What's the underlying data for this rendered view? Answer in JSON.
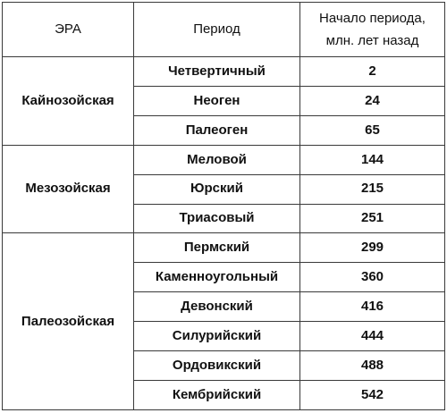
{
  "table": {
    "headers": {
      "era": "ЭРА",
      "period": "Период",
      "start_line1": "Начало периода,",
      "start_line2": "млн. лет назад"
    },
    "eras": [
      {
        "name": "Кайнозойская",
        "periods": [
          {
            "name": "Четвертичный",
            "start": "2"
          },
          {
            "name": "Неоген",
            "start": "24"
          },
          {
            "name": "Палеоген",
            "start": "65"
          }
        ]
      },
      {
        "name": "Мезозойская",
        "periods": [
          {
            "name": "Меловой",
            "start": "144"
          },
          {
            "name": "Юрский",
            "start": "215"
          },
          {
            "name": "Триасовый",
            "start": "251"
          }
        ]
      },
      {
        "name": "Палеозойская",
        "periods": [
          {
            "name": "Пермский",
            "start": "299"
          },
          {
            "name": "Каменноугольный",
            "start": "360"
          },
          {
            "name": "Девонский",
            "start": "416"
          },
          {
            "name": "Силурийский",
            "start": "444"
          },
          {
            "name": "Ордовикский",
            "start": "488"
          },
          {
            "name": "Кембрийский",
            "start": "542"
          }
        ]
      }
    ]
  }
}
